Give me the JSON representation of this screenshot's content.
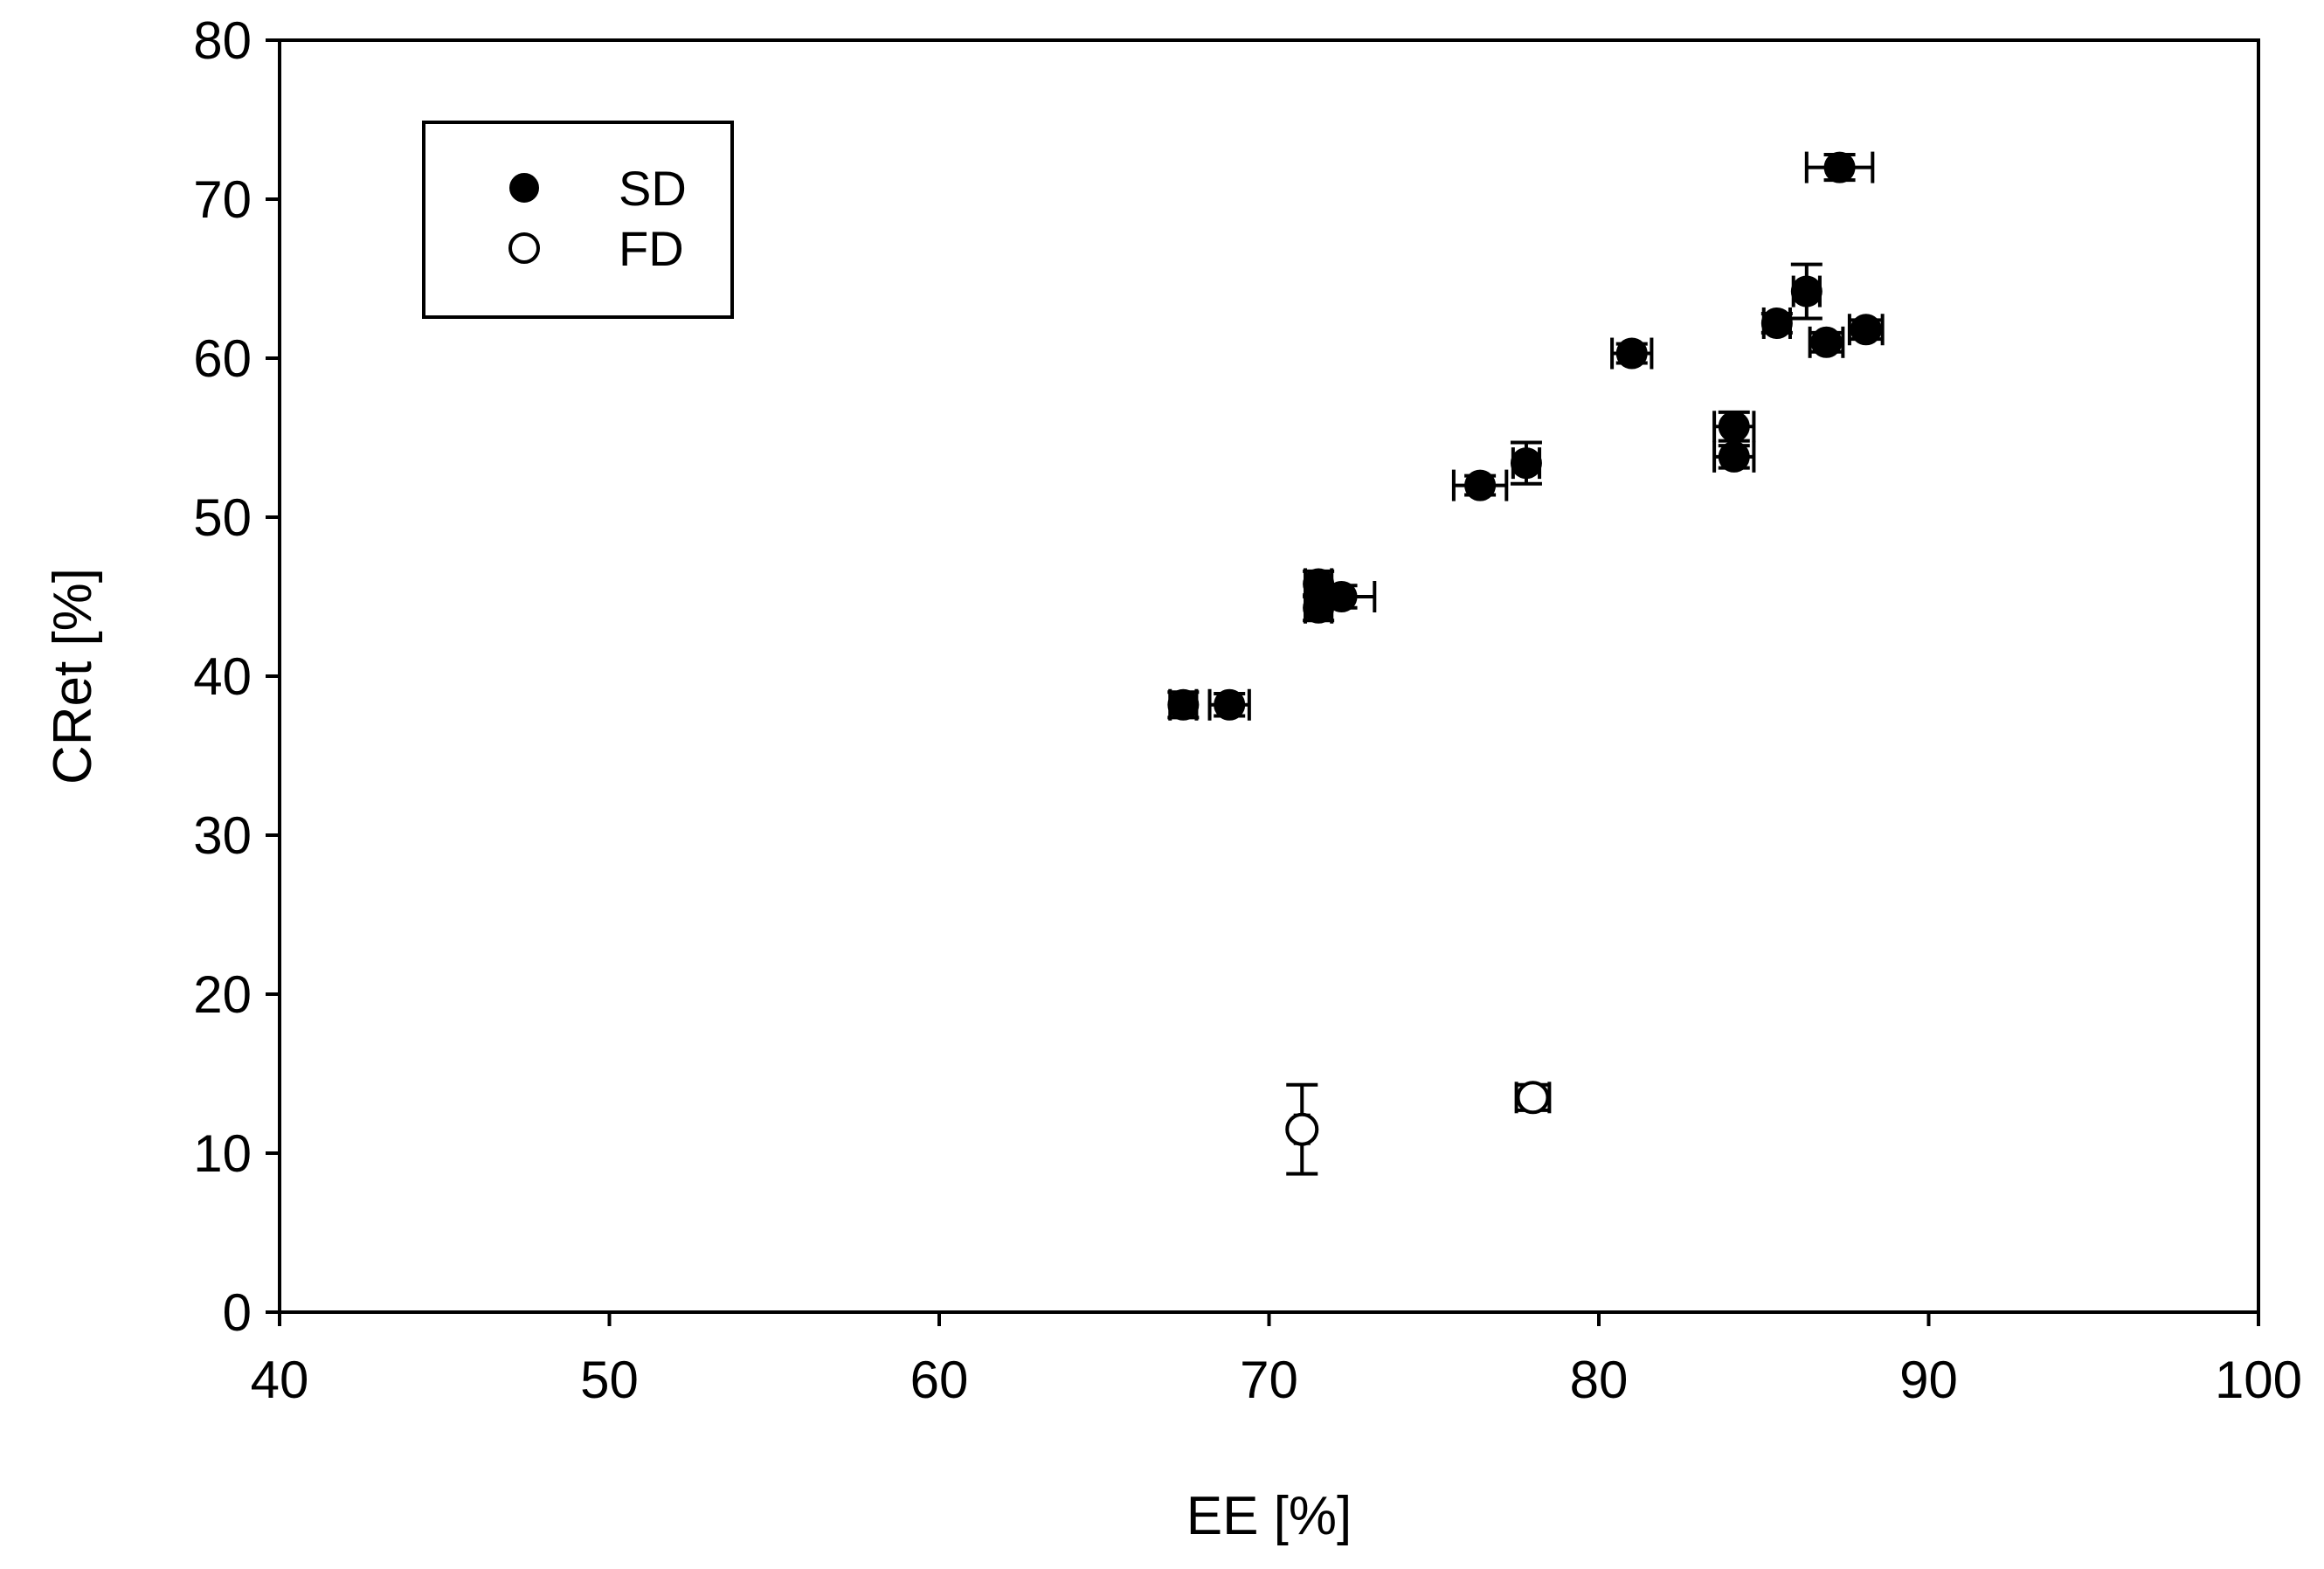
{
  "chart_data": {
    "type": "scatter",
    "title": "",
    "xlabel": "EE [%]",
    "ylabel": "CRet [%]",
    "xlim": [
      40,
      100
    ],
    "ylim": [
      0,
      80
    ],
    "x_ticks": [
      40,
      50,
      60,
      70,
      80,
      90,
      100
    ],
    "y_ticks": [
      0,
      10,
      20,
      30,
      40,
      50,
      60,
      70,
      80
    ],
    "grid": false,
    "legend": {
      "position": "top-left",
      "entries": [
        "SD",
        "FD"
      ]
    },
    "series": [
      {
        "name": "SD",
        "marker": "filled-circle",
        "color": "#000000",
        "points": [
          {
            "x": 67.4,
            "y": 38.2,
            "xerr": 0.4,
            "yerr": 0.8
          },
          {
            "x": 68.8,
            "y": 38.2,
            "xerr": 0.6,
            "yerr": 0.7
          },
          {
            "x": 71.5,
            "y": 45.8,
            "xerr": 0.4,
            "yerr": 0.8
          },
          {
            "x": 71.5,
            "y": 44.3,
            "xerr": 0.4,
            "yerr": 0.8
          },
          {
            "x": 72.2,
            "y": 45.0,
            "xerr": 1.0,
            "yerr": 0.7
          },
          {
            "x": 76.4,
            "y": 52.0,
            "xerr": 0.8,
            "yerr": 0.6
          },
          {
            "x": 77.8,
            "y": 53.4,
            "xerr": 0.4,
            "yerr": 1.3
          },
          {
            "x": 81.0,
            "y": 60.3,
            "xerr": 0.6,
            "yerr": 0.6
          },
          {
            "x": 84.1,
            "y": 55.7,
            "xerr": 0.6,
            "yerr": 0.9
          },
          {
            "x": 84.1,
            "y": 53.8,
            "xerr": 0.6,
            "yerr": 0.7
          },
          {
            "x": 85.4,
            "y": 62.2,
            "xerr": 0.4,
            "yerr": 0.6
          },
          {
            "x": 86.3,
            "y": 64.2,
            "xerr": 0.4,
            "yerr": 1.7
          },
          {
            "x": 86.9,
            "y": 61.0,
            "xerr": 0.5,
            "yerr": 0.6
          },
          {
            "x": 87.3,
            "y": 72.0,
            "xerr": 1.0,
            "yerr": 0.8
          },
          {
            "x": 88.1,
            "y": 61.8,
            "xerr": 0.5,
            "yerr": 0.6
          }
        ]
      },
      {
        "name": "FD",
        "marker": "open-circle",
        "color": "#000000",
        "points": [
          {
            "x": 71.0,
            "y": 11.5,
            "xerr": 0.2,
            "yerr": 2.8
          },
          {
            "x": 78.0,
            "y": 13.5,
            "xerr": 0.5,
            "yerr": 0.8
          }
        ]
      }
    ]
  }
}
